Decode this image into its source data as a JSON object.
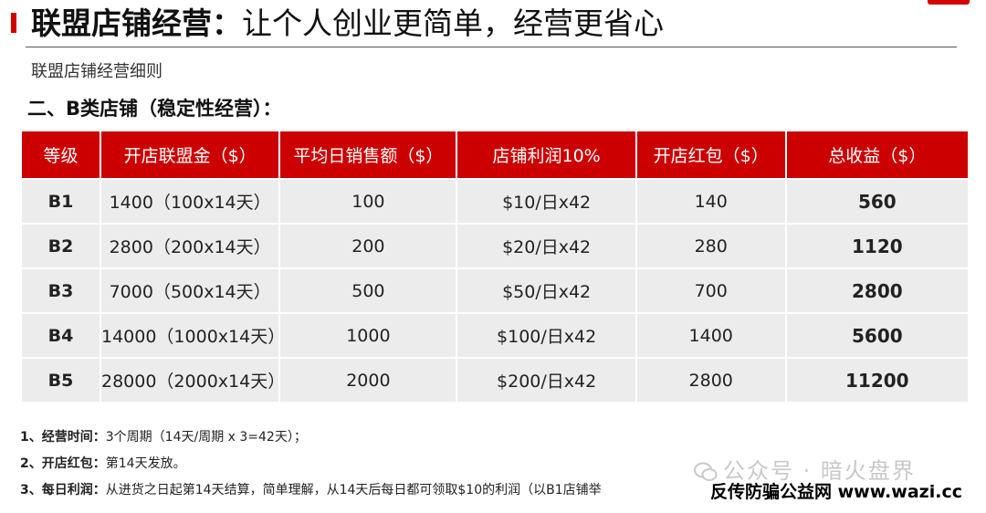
{
  "header": {
    "title_bold": "联盟店铺经营：",
    "title_rest": "让个人创业更简单，经营更省心",
    "subtitle": "联盟店铺经营细则",
    "section": "二、B类店铺（稳定性经营）："
  },
  "table": {
    "headers": [
      "等级",
      "开店联盟金（$）",
      "平均日销售额（$）",
      "店铺利润10%",
      "开店红包（$）",
      "总收益（$）"
    ],
    "rows": [
      [
        "B1",
        "1400（100x14天）",
        "100",
        "$10/日x42",
        "140",
        "560"
      ],
      [
        "B2",
        "2800（200x14天）",
        "200",
        "$20/日x42",
        "280",
        "1120"
      ],
      [
        "B3",
        "7000（500x14天）",
        "500",
        "$50/日x42",
        "700",
        "2800"
      ],
      [
        "B4",
        "14000（1000x14天）",
        "1000",
        "$100/日x42",
        "1400",
        "5600"
      ],
      [
        "B5",
        "28000（2000x14天）",
        "2000",
        "$200/日x42",
        "2800",
        "11200"
      ]
    ]
  },
  "notes": [
    {
      "label": "1、经营时间：",
      "text": "3个周期（14天/周期 x 3=42天）；"
    },
    {
      "label": "2、开店红包：",
      "text": "第14天发放。"
    },
    {
      "label": "3、每日利润：",
      "text": "从进货之日起第14天结算，简单理解，从14天后每日都可领取$10的利润（以B1店铺举"
    }
  ],
  "watermark": {
    "account": "公众号 · 暗火盘界",
    "site": "反传防骗公益网 www.wazi.cc"
  },
  "colors": {
    "accent": "#cc0000",
    "cell_bg": "#ececec"
  }
}
